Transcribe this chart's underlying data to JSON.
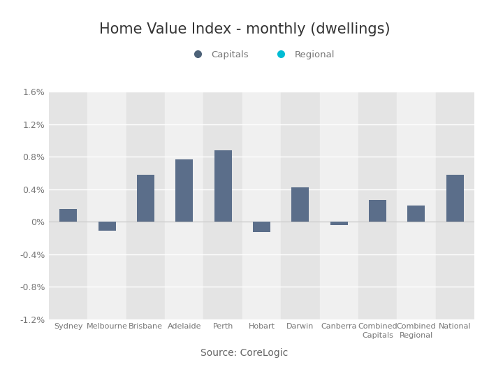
{
  "title": "Home Value Index - monthly (dwellings)",
  "categories": [
    "Sydney",
    "Melbourne",
    "Brisbane",
    "Adelaide",
    "Perth",
    "Hobart",
    "Darwin",
    "Canberra",
    "Combined\nCapitals",
    "Combined\nRegional",
    "National"
  ],
  "values": [
    0.155,
    -0.11,
    0.58,
    0.77,
    0.88,
    -0.13,
    0.42,
    -0.04,
    0.27,
    0.2,
    0.58
  ],
  "bar_color": "#5b6e8a",
  "background_color": "#ffffff",
  "plot_bg_color": "#f0f0f0",
  "stripe_color": "#e4e4e4",
  "grid_color": "#ffffff",
  "ylim": [
    -1.2,
    1.6
  ],
  "yticks": [
    -1.2,
    -0.8,
    -0.4,
    0.0,
    0.4,
    0.8,
    1.2,
    1.6
  ],
  "legend_capitals_color": "#4d6278",
  "legend_regional_color": "#00bcd4",
  "source_text": "Source: CoreLogic",
  "title_fontsize": 15,
  "label_fontsize": 8,
  "tick_fontsize": 9,
  "source_fontsize": 10
}
